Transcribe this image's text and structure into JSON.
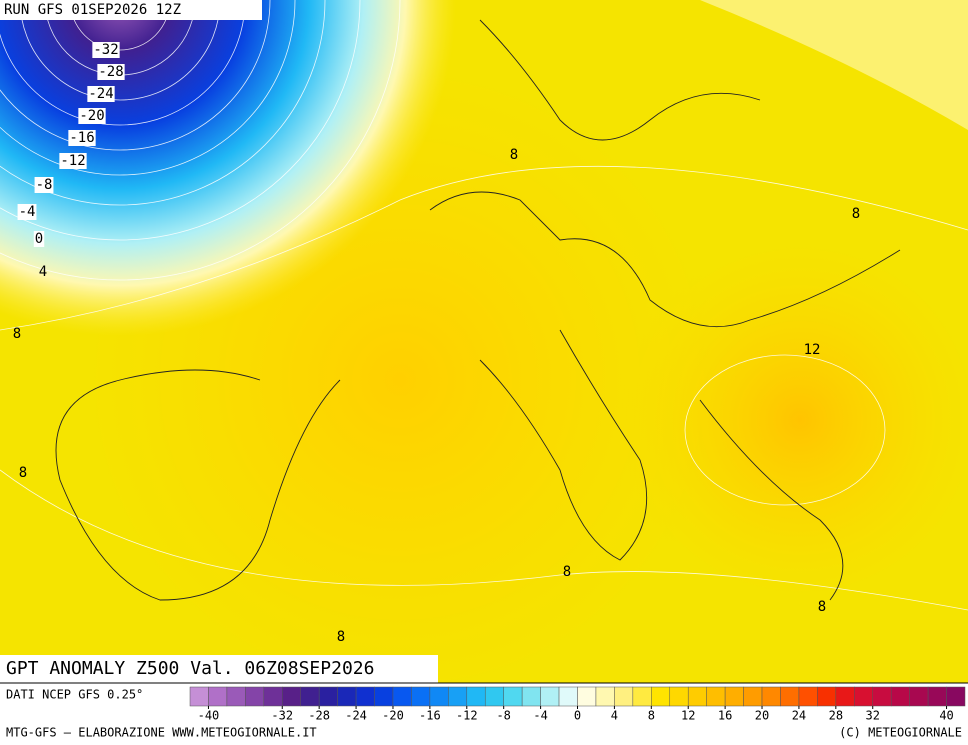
{
  "header": {
    "run": "RUN GFS 01SEP2026 12Z"
  },
  "map": {
    "title": "GPT ANOMALY Z500 Val. 06Z08SEP2026",
    "contour_labels": [
      -32,
      -28,
      -24,
      -20,
      -16,
      -12,
      -8,
      -4,
      0,
      4,
      8,
      8,
      8,
      12,
      8,
      8,
      8,
      8
    ]
  },
  "colorbar": {
    "source": "DATI NCEP GFS 0.25°",
    "lim": [
      -42,
      42
    ],
    "ticks": [
      -40,
      -32,
      -28,
      -24,
      -20,
      -16,
      -12,
      -8,
      -4,
      0,
      4,
      8,
      12,
      16,
      20,
      24,
      28,
      32,
      40
    ],
    "colors": [
      "#c58fd6",
      "#b070c8",
      "#9a5ab8",
      "#8444a8",
      "#6e3098",
      "#582088",
      "#402090",
      "#2a20a0",
      "#1a28b8",
      "#1030d0",
      "#0840e0",
      "#0858f0",
      "#0a70f5",
      "#1088f5",
      "#18a0f5",
      "#20b8f5",
      "#30c8f0",
      "#50d8f0",
      "#80e4f0",
      "#b0f0f5",
      "#e0fafa",
      "#fffde0",
      "#fff8b0",
      "#fff080",
      "#ffea40",
      "#ffe400",
      "#ffd800",
      "#ffcc00",
      "#ffbe00",
      "#ffae00",
      "#ff9c00",
      "#ff8800",
      "#ff6e00",
      "#ff5000",
      "#f83000",
      "#e81818",
      "#d81030",
      "#c80c40",
      "#b80848",
      "#a80850",
      "#980858",
      "#880860"
    ]
  },
  "footer": {
    "left": "MTG-GFS – ELABORAZIONE WWW.METEOGIORNALE.IT",
    "right": "(C) METEOGIORNALE"
  }
}
